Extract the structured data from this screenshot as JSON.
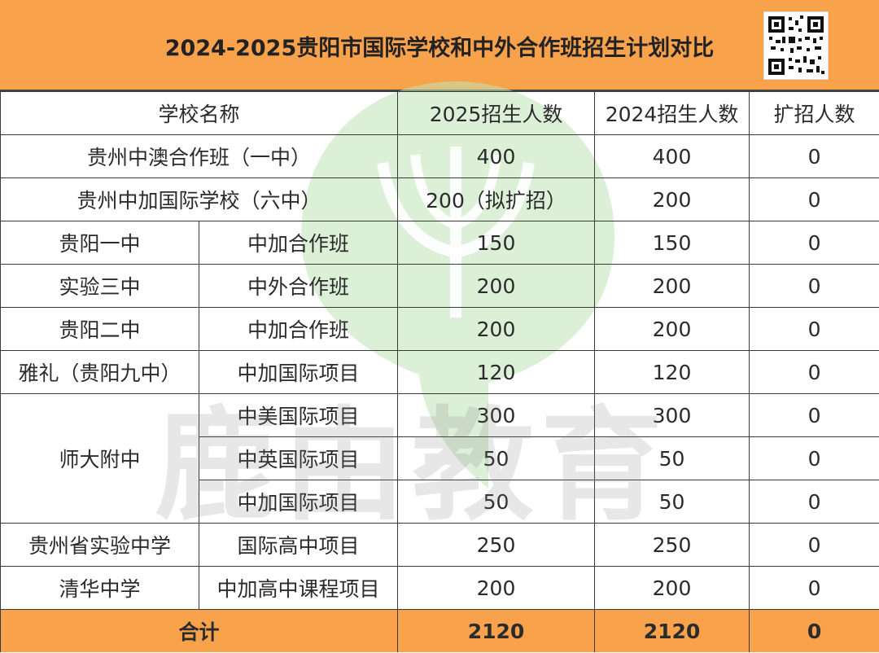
{
  "title": "2024-2025贵阳市国际学校和中外合作班招生计划对比",
  "watermark": "鹿由教育",
  "qr_icon": "qr-code-icon",
  "headers": {
    "school": "学校名称",
    "y2025": "2025招生人数",
    "y2024": "2024招生人数",
    "increase": "扩招人数"
  },
  "rows": [
    {
      "school": "贵州中澳合作班（一中）",
      "program": "",
      "y2025": "400",
      "y2024": "400",
      "increase": "0"
    },
    {
      "school": "贵州中加国际学校（六中）",
      "program": "",
      "y2025": "200（拟扩招）",
      "y2024": "200",
      "increase": "0"
    },
    {
      "school": "贵阳一中",
      "program": "中加合作班",
      "y2025": "150",
      "y2024": "150",
      "increase": "0"
    },
    {
      "school": "实验三中",
      "program": "中外合作班",
      "y2025": "200",
      "y2024": "200",
      "increase": "0"
    },
    {
      "school": "贵阳二中",
      "program": "中加合作班",
      "y2025": "200",
      "y2024": "200",
      "increase": "0"
    },
    {
      "school": "雅礼（贵阳九中）",
      "program": "中加国际项目",
      "y2025": "120",
      "y2024": "120",
      "increase": "0"
    },
    {
      "school": "师大附中",
      "program": "中美国际项目",
      "y2025": "300",
      "y2024": "300",
      "increase": "0"
    },
    {
      "school": "",
      "program": "中英国际项目",
      "y2025": "50",
      "y2024": "50",
      "increase": "0"
    },
    {
      "school": "",
      "program": "中加国际项目",
      "y2025": "50",
      "y2024": "50",
      "increase": "0"
    },
    {
      "school": "贵州省实验中学",
      "program": "国际高中项目",
      "y2025": "250",
      "y2024": "250",
      "increase": "0"
    },
    {
      "school": "清华中学",
      "program": "中加高中课程项目",
      "y2025": "200",
      "y2024": "200",
      "increase": "0"
    }
  ],
  "total": {
    "label": "合计",
    "y2025": "2120",
    "y2024": "2120",
    "increase": "0"
  },
  "colors": {
    "header_bg": "#f8a24c",
    "watermark_green": "#a8d8a0",
    "border": "#3a3a3a"
  }
}
